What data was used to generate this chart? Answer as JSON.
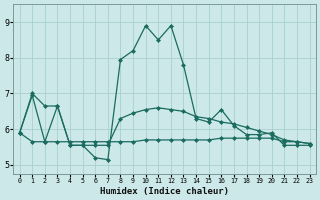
{
  "xlabel": "Humidex (Indice chaleur)",
  "xlim": [
    -0.5,
    23.5
  ],
  "ylim": [
    4.75,
    9.5
  ],
  "yticks": [
    5,
    6,
    7,
    8,
    9
  ],
  "xticks": [
    0,
    1,
    2,
    3,
    4,
    5,
    6,
    7,
    8,
    9,
    10,
    11,
    12,
    13,
    14,
    15,
    16,
    17,
    18,
    19,
    20,
    21,
    22,
    23
  ],
  "bg_color": "#cce8e8",
  "grid_color": "#a8d0d0",
  "line_color": "#1a6b60",
  "series": [
    [
      5.9,
      6.95,
      5.65,
      6.65,
      5.55,
      5.55,
      5.2,
      5.15,
      7.95,
      8.2,
      8.9,
      8.5,
      8.9,
      7.8,
      6.3,
      6.2,
      6.55,
      6.1,
      5.85,
      5.85,
      5.9,
      5.55,
      5.55,
      5.55
    ],
    [
      5.9,
      7.0,
      6.65,
      6.65,
      5.55,
      5.55,
      5.55,
      5.55,
      6.3,
      6.45,
      6.55,
      6.6,
      6.55,
      6.5,
      6.35,
      6.3,
      6.2,
      6.15,
      6.05,
      5.95,
      5.85,
      5.7,
      5.65,
      5.6
    ],
    [
      5.9,
      5.65,
      5.65,
      5.65,
      5.65,
      5.65,
      5.65,
      5.65,
      5.65,
      5.65,
      5.7,
      5.7,
      5.7,
      5.7,
      5.7,
      5.7,
      5.75,
      5.75,
      5.75,
      5.75,
      5.75,
      5.65,
      5.65,
      5.6
    ]
  ]
}
